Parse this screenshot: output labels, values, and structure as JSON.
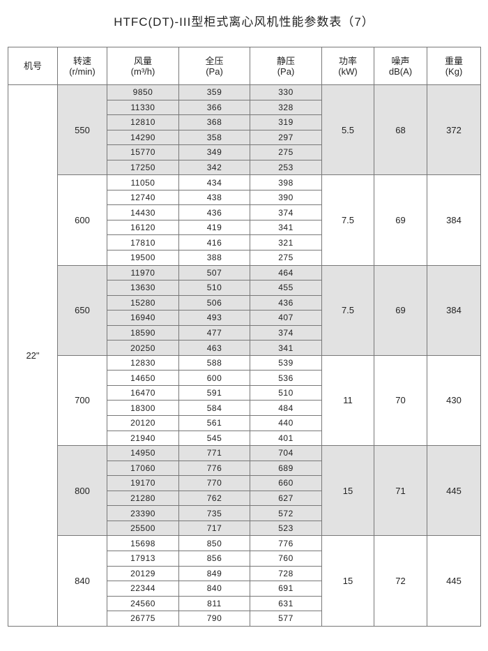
{
  "title": "HTFC(DT)-III型柜式离心风机性能参数表（7）",
  "headers": [
    {
      "label": "机号",
      "unit": ""
    },
    {
      "label": "转速",
      "unit": "(r/min)"
    },
    {
      "label": "风量",
      "unit": "(m³/h)"
    },
    {
      "label": "全压",
      "unit": "(Pa)"
    },
    {
      "label": "静压",
      "unit": "(Pa)"
    },
    {
      "label": "功率",
      "unit": "(kW)"
    },
    {
      "label": "噪声",
      "unit": "dB(A)"
    },
    {
      "label": "重量",
      "unit": "(Kg)"
    }
  ],
  "model": "22\"",
  "shade_color": "#e2e2e2",
  "groups": [
    {
      "speed": "550",
      "power": "5.5",
      "noise": "68",
      "weight": "372",
      "shaded": true,
      "rows": [
        [
          "9850",
          "359",
          "330"
        ],
        [
          "11330",
          "366",
          "328"
        ],
        [
          "12810",
          "368",
          "319"
        ],
        [
          "14290",
          "358",
          "297"
        ],
        [
          "15770",
          "349",
          "275"
        ],
        [
          "17250",
          "342",
          "253"
        ]
      ]
    },
    {
      "speed": "600",
      "power": "7.5",
      "noise": "69",
      "weight": "384",
      "shaded": false,
      "rows": [
        [
          "11050",
          "434",
          "398"
        ],
        [
          "12740",
          "438",
          "390"
        ],
        [
          "14430",
          "436",
          "374"
        ],
        [
          "16120",
          "419",
          "341"
        ],
        [
          "17810",
          "416",
          "321"
        ],
        [
          "19500",
          "388",
          "275"
        ]
      ]
    },
    {
      "speed": "650",
      "power": "7.5",
      "noise": "69",
      "weight": "384",
      "shaded": true,
      "rows": [
        [
          "11970",
          "507",
          "464"
        ],
        [
          "13630",
          "510",
          "455"
        ],
        [
          "15280",
          "506",
          "436"
        ],
        [
          "16940",
          "493",
          "407"
        ],
        [
          "18590",
          "477",
          "374"
        ],
        [
          "20250",
          "463",
          "341"
        ]
      ]
    },
    {
      "speed": "700",
      "power": "11",
      "noise": "70",
      "weight": "430",
      "shaded": false,
      "rows": [
        [
          "12830",
          "588",
          "539"
        ],
        [
          "14650",
          "600",
          "536"
        ],
        [
          "16470",
          "591",
          "510"
        ],
        [
          "18300",
          "584",
          "484"
        ],
        [
          "20120",
          "561",
          "440"
        ],
        [
          "21940",
          "545",
          "401"
        ]
      ]
    },
    {
      "speed": "800",
      "power": "15",
      "noise": "71",
      "weight": "445",
      "shaded": true,
      "rows": [
        [
          "14950",
          "771",
          "704"
        ],
        [
          "17060",
          "776",
          "689"
        ],
        [
          "19170",
          "770",
          "660"
        ],
        [
          "21280",
          "762",
          "627"
        ],
        [
          "23390",
          "735",
          "572"
        ],
        [
          "25500",
          "717",
          "523"
        ]
      ]
    },
    {
      "speed": "840",
      "power": "15",
      "noise": "72",
      "weight": "445",
      "shaded": false,
      "rows": [
        [
          "15698",
          "850",
          "776"
        ],
        [
          "17913",
          "856",
          "760"
        ],
        [
          "20129",
          "849",
          "728"
        ],
        [
          "22344",
          "840",
          "691"
        ],
        [
          "24560",
          "811",
          "631"
        ],
        [
          "26775",
          "790",
          "577"
        ]
      ]
    }
  ]
}
